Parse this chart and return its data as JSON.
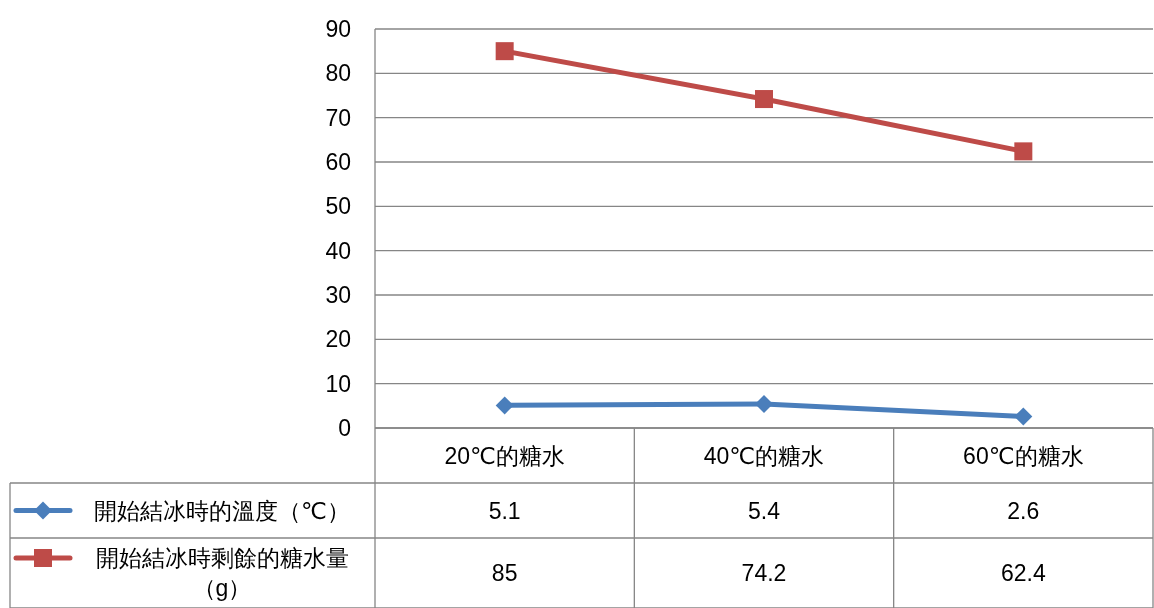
{
  "chart_data": {
    "type": "line",
    "categories": [
      "20℃的糖水",
      "40℃的糖水",
      "60℃的糖水"
    ],
    "series": [
      {
        "name": "開始結冰時的溫度（℃）",
        "color": "#4a7ebb",
        "values": [
          5.1,
          5.4,
          2.6
        ],
        "marker": "diamond"
      },
      {
        "name": "開始結冰時剩餘的糖水量（g）",
        "color": "#be4b48",
        "values": [
          85,
          74.2,
          62.4
        ],
        "marker": "square"
      }
    ],
    "ylim": [
      0,
      90
    ],
    "yticks": [
      0,
      10,
      20,
      30,
      40,
      50,
      60,
      70,
      80,
      90
    ],
    "grid": "y",
    "legend": "bottom left",
    "data_labels": true,
    "line_style": "solid"
  }
}
